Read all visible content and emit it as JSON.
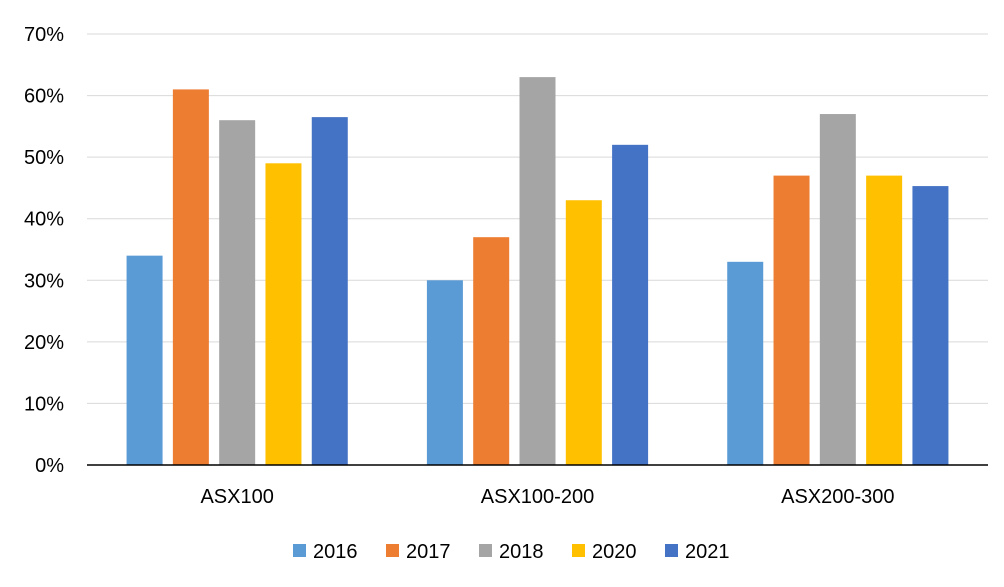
{
  "chart_data": {
    "type": "bar",
    "title": "",
    "xlabel": "",
    "ylabel": "",
    "categories": [
      "ASX100",
      "ASX100-200",
      "ASX200-300"
    ],
    "series": [
      {
        "name": "2016",
        "color": "#5b9bd5",
        "values": [
          34,
          30,
          33
        ]
      },
      {
        "name": "2017",
        "color": "#ed7d31",
        "values": [
          61,
          37,
          47
        ]
      },
      {
        "name": "2018",
        "color": "#a5a5a5",
        "values": [
          56,
          63,
          57
        ]
      },
      {
        "name": "2020",
        "color": "#ffc000",
        "values": [
          49,
          43,
          47
        ]
      },
      {
        "name": "2021",
        "color": "#4472c4",
        "values": [
          56.5,
          52,
          45.3
        ]
      }
    ],
    "ylim": [
      0,
      70
    ],
    "yticks": [
      "0%",
      "10%",
      "20%",
      "30%",
      "40%",
      "50%",
      "60%",
      "70%"
    ],
    "y_unit": "%",
    "grid": true,
    "legend_position": "bottom"
  }
}
